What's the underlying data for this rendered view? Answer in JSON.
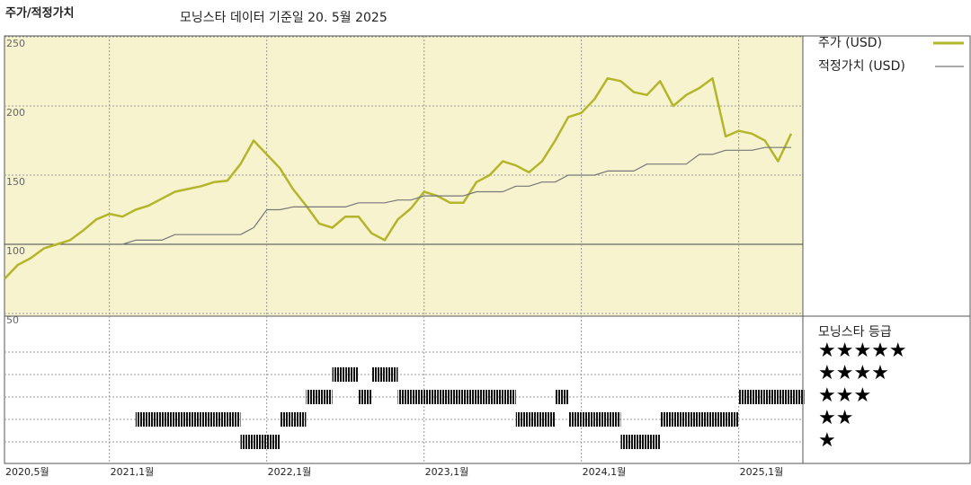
{
  "chart_data": {
    "type": "line",
    "title": "주가/적정가치",
    "subtitle": "모닝스타 데이터 기준일 20. 5월 2025",
    "x": [
      "2020-05",
      "2020-06",
      "2020-07",
      "2020-08",
      "2020-09",
      "2020-10",
      "2020-11",
      "2020-12",
      "2021-01",
      "2021-02",
      "2021-03",
      "2021-04",
      "2021-05",
      "2021-06",
      "2021-07",
      "2021-08",
      "2021-09",
      "2021-10",
      "2021-11",
      "2021-12",
      "2022-01",
      "2022-02",
      "2022-03",
      "2022-04",
      "2022-05",
      "2022-06",
      "2022-07",
      "2022-08",
      "2022-09",
      "2022-10",
      "2022-11",
      "2022-12",
      "2023-01",
      "2023-02",
      "2023-03",
      "2023-04",
      "2023-05",
      "2023-06",
      "2023-07",
      "2023-08",
      "2023-09",
      "2023-10",
      "2023-11",
      "2023-12",
      "2024-01",
      "2024-02",
      "2024-03",
      "2024-04",
      "2024-05",
      "2024-06",
      "2024-07",
      "2024-08",
      "2024-09",
      "2024-10",
      "2024-11",
      "2024-12",
      "2025-01",
      "2025-02",
      "2025-03",
      "2025-04",
      "2025-05"
    ],
    "series": [
      {
        "name": "주가 (USD)",
        "color": "#b3b52a",
        "values": [
          75,
          85,
          90,
          97,
          100,
          103,
          110,
          118,
          122,
          120,
          125,
          128,
          133,
          138,
          140,
          142,
          145,
          146,
          158,
          175,
          165,
          155,
          140,
          128,
          115,
          112,
          120,
          120,
          108,
          103,
          118,
          126,
          138,
          135,
          130,
          130,
          145,
          150,
          160,
          157,
          152,
          160,
          175,
          192,
          195,
          205,
          220,
          218,
          210,
          208,
          218,
          200,
          208,
          213,
          220,
          178,
          182,
          180,
          175,
          160,
          180
        ]
      },
      {
        "name": "적정가치 (USD)",
        "color": "#777777",
        "values": [
          null,
          null,
          null,
          null,
          null,
          null,
          null,
          null,
          null,
          100,
          103,
          103,
          103,
          107,
          107,
          107,
          107,
          107,
          107,
          112,
          125,
          125,
          127,
          127,
          127,
          127,
          127,
          130,
          130,
          130,
          132,
          132,
          135,
          135,
          135,
          135,
          138,
          138,
          138,
          142,
          142,
          145,
          145,
          150,
          150,
          150,
          153,
          153,
          153,
          158,
          158,
          158,
          158,
          165,
          165,
          168,
          168,
          168,
          170,
          170,
          170
        ]
      }
    ],
    "ylim": [
      50,
      250
    ],
    "yticks": [
      50,
      100,
      150,
      200,
      250
    ],
    "xticks": [
      {
        "value": "2020-05",
        "label": "2020,5월"
      },
      {
        "value": "2021-01",
        "label": "2021,1월"
      },
      {
        "value": "2022-01",
        "label": "2022,1월"
      },
      {
        "value": "2023-01",
        "label": "2023,1월"
      },
      {
        "value": "2024-01",
        "label": "2024,1월"
      },
      {
        "value": "2025-01",
        "label": "2025,1월"
      }
    ],
    "grid": true,
    "rating_title": "모닝스타 등급",
    "rating_labels": [
      "★★★★★",
      "★★★★",
      "★★★",
      "★★",
      "★"
    ],
    "ratings": [
      null,
      null,
      null,
      null,
      null,
      null,
      null,
      null,
      null,
      null,
      2,
      2,
      2,
      2,
      2,
      2,
      2,
      2,
      1,
      1,
      1,
      2,
      2,
      3,
      3,
      4,
      4,
      3,
      4,
      4,
      3,
      3,
      3,
      3,
      3,
      3,
      3,
      3,
      3,
      2,
      2,
      2,
      3,
      2,
      2,
      2,
      2,
      1,
      1,
      1,
      2,
      2,
      2,
      2,
      2,
      2,
      3,
      3,
      3,
      3,
      3
    ]
  }
}
